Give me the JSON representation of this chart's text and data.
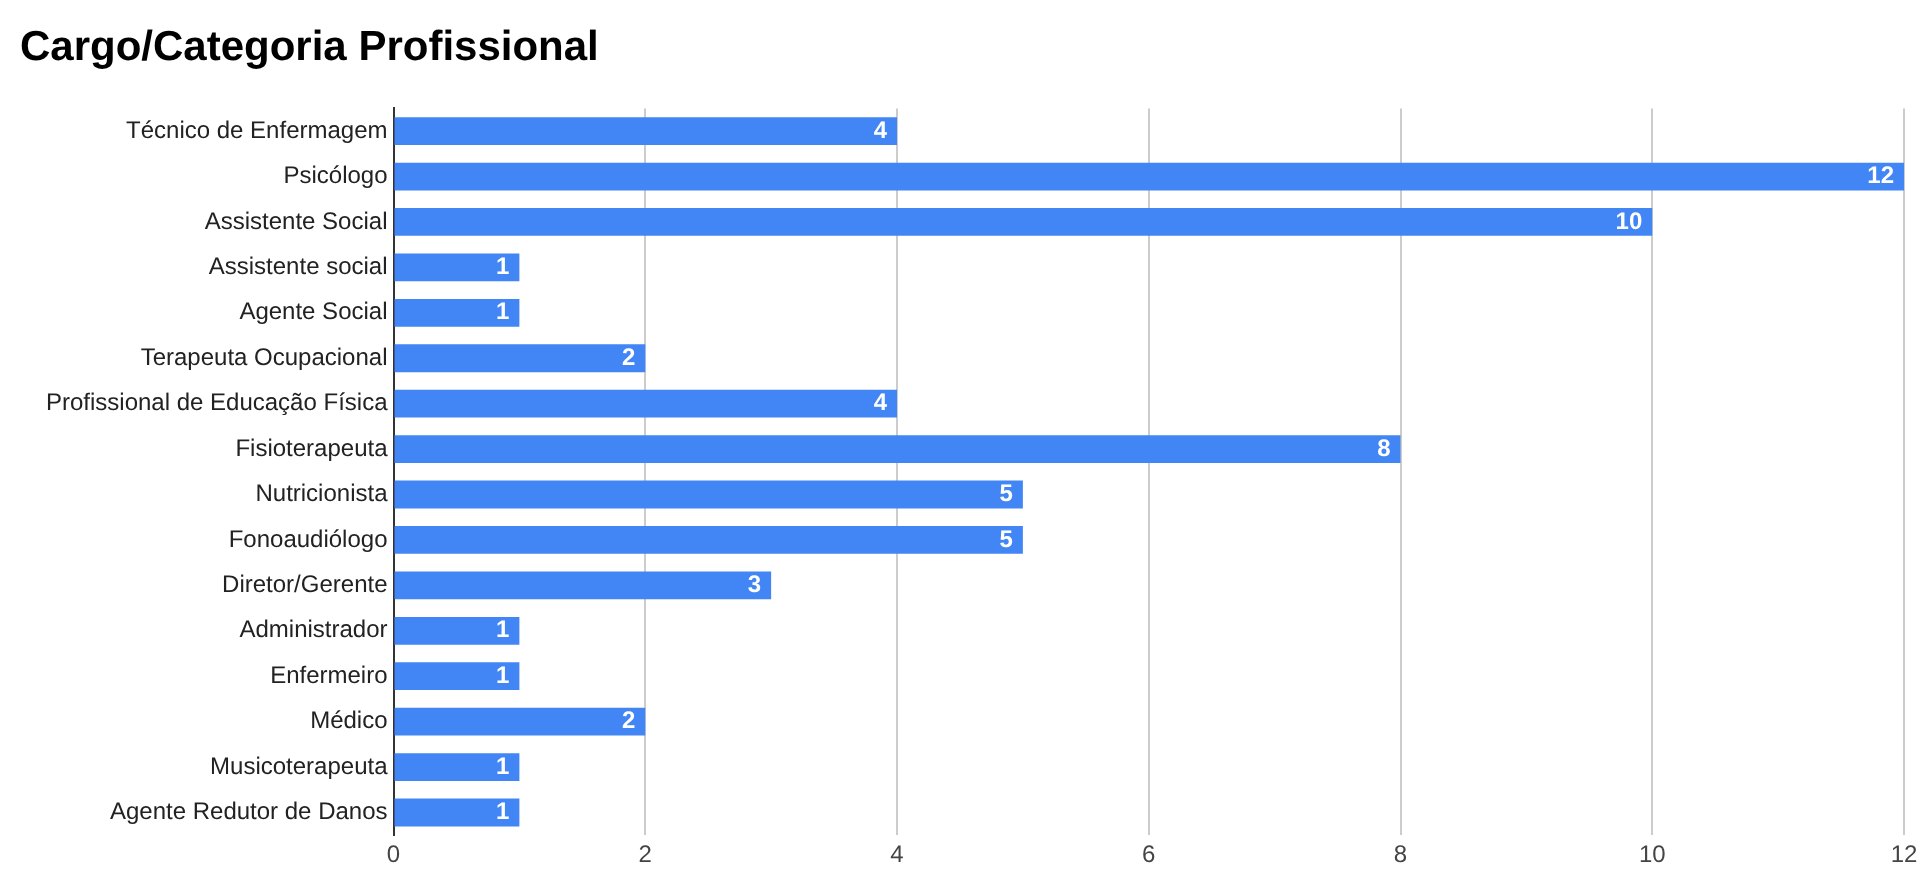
{
  "chart_data": {
    "type": "bar",
    "title": "Cargo/Categoria Profissional",
    "orientation": "horizontal",
    "categories": [
      "Técnico de Enfermagem",
      "Psicólogo",
      "Assistente Social",
      "Assistente social",
      "Agente Social",
      "Terapeuta Ocupacional",
      "Profissional de Educação Física",
      "Fisioterapeuta",
      "Nutricionista",
      "Fonoaudiólogo",
      "Diretor/Gerente",
      "Administrador",
      "Enfermeiro",
      "Médico",
      "Musicoterapeuta",
      "Agente Redutor de Danos"
    ],
    "values": [
      4,
      12,
      10,
      1,
      1,
      2,
      4,
      8,
      5,
      5,
      3,
      1,
      1,
      2,
      1,
      1
    ],
    "color": "#4285f4",
    "xlim": [
      0,
      12
    ],
    "xticks": [
      0,
      2,
      4,
      6,
      8,
      10,
      12
    ],
    "grid": "x",
    "data_labels": true
  }
}
